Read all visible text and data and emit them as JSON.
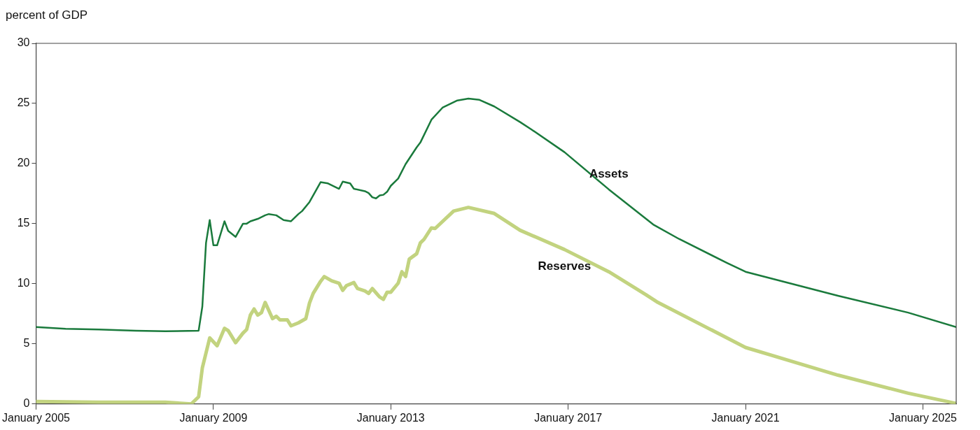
{
  "chart_data": {
    "type": "line",
    "ylabel": "percent of GDP",
    "xlim": [
      "2005-01",
      "2025-10"
    ],
    "xticks": [
      {
        "value": "2005-01",
        "label": "January 2005"
      },
      {
        "value": "2009-01",
        "label": "January 2009"
      },
      {
        "value": "2013-01",
        "label": "January 2013"
      },
      {
        "value": "2017-01",
        "label": "January 2017"
      },
      {
        "value": "2021-01",
        "label": "January 2021"
      },
      {
        "value": "2025-01",
        "label": "January 2025"
      }
    ],
    "ylim": [
      0,
      30
    ],
    "yticks": [
      0,
      5,
      10,
      15,
      20,
      25,
      30
    ],
    "legend": false,
    "marker": "none",
    "series": [
      {
        "name": "Assets",
        "color": "#1a7a3c",
        "x": [
          "2005-01",
          "2005-09",
          "2006-06",
          "2007-04",
          "2007-12",
          "2008-09",
          "2008-10",
          "2008-11",
          "2008-12",
          "2009-01",
          "2009-02",
          "2009-04",
          "2009-05",
          "2009-07",
          "2009-09",
          "2009-10",
          "2009-11",
          "2010-01",
          "2010-03",
          "2010-04",
          "2010-06",
          "2010-08",
          "2010-10",
          "2010-12",
          "2011-01",
          "2011-03",
          "2011-06",
          "2011-08",
          "2011-11",
          "2011-12",
          "2012-02",
          "2012-03",
          "2012-06",
          "2012-07",
          "2012-08",
          "2012-09",
          "2012-10",
          "2012-11",
          "2012-12",
          "2013-01",
          "2013-03",
          "2013-05",
          "2013-08",
          "2013-09",
          "2013-12",
          "2014-03",
          "2014-07",
          "2014-10",
          "2015-01",
          "2015-05",
          "2015-12",
          "2016-03",
          "2016-12",
          "2017-12",
          "2018-12",
          "2019-07",
          "2020-08",
          "2021-01",
          "2023-02",
          "2024-09",
          "2025-10"
        ],
        "values": [
          6.4,
          6.25,
          6.2,
          6.1,
          6.05,
          6.1,
          8.1,
          13.4,
          15.3,
          13.2,
          13.2,
          15.2,
          14.4,
          13.9,
          15.0,
          15.0,
          15.2,
          15.4,
          15.7,
          15.8,
          15.7,
          15.3,
          15.2,
          15.8,
          16.05,
          16.8,
          18.45,
          18.35,
          17.9,
          18.5,
          18.35,
          17.9,
          17.7,
          17.55,
          17.2,
          17.1,
          17.35,
          17.4,
          17.65,
          18.15,
          18.75,
          19.95,
          21.35,
          21.75,
          23.65,
          24.65,
          25.25,
          25.4,
          25.3,
          24.75,
          23.45,
          22.85,
          20.95,
          17.85,
          14.93,
          13.73,
          11.73,
          11.0,
          9.0,
          7.6,
          6.4
        ]
      },
      {
        "name": "Reserves",
        "color": "#c2d37f",
        "x": [
          "2005-01",
          "2006-06",
          "2007-12",
          "2008-07",
          "2008-09",
          "2008-10",
          "2008-12",
          "2009-02",
          "2009-04",
          "2009-05",
          "2009-07",
          "2009-09",
          "2009-10",
          "2009-11",
          "2009-12",
          "2010-01",
          "2010-02",
          "2010-03",
          "2010-05",
          "2010-06",
          "2010-07",
          "2010-09",
          "2010-10",
          "2010-12",
          "2011-02",
          "2011-03",
          "2011-04",
          "2011-06",
          "2011-07",
          "2011-09",
          "2011-11",
          "2011-12",
          "2012-01",
          "2012-03",
          "2012-04",
          "2012-06",
          "2012-07",
          "2012-08",
          "2012-10",
          "2012-11",
          "2012-12",
          "2013-01",
          "2013-03",
          "2013-04",
          "2013-05",
          "2013-06",
          "2013-08",
          "2013-09",
          "2013-10",
          "2013-12",
          "2014-01",
          "2014-06",
          "2014-10",
          "2015-05",
          "2015-12",
          "2016-12",
          "2017-12",
          "2018-10",
          "2019-01",
          "2021-01",
          "2023-02",
          "2024-09",
          "2025-10"
        ],
        "values": [
          0.2,
          0.15,
          0.15,
          0.0,
          0.6,
          3.0,
          5.5,
          4.85,
          6.3,
          6.1,
          5.1,
          5.9,
          6.2,
          7.4,
          7.9,
          7.4,
          7.6,
          8.45,
          7.1,
          7.3,
          7.0,
          7.0,
          6.5,
          6.75,
          7.1,
          8.4,
          9.2,
          10.2,
          10.6,
          10.25,
          10.05,
          9.45,
          9.85,
          10.1,
          9.6,
          9.4,
          9.2,
          9.6,
          8.9,
          8.7,
          9.3,
          9.3,
          10.05,
          11.0,
          10.6,
          12.05,
          12.5,
          13.4,
          13.7,
          14.65,
          14.6,
          16.05,
          16.35,
          15.85,
          14.45,
          12.85,
          11.0,
          9.1,
          8.5,
          4.7,
          2.4,
          0.9,
          0.05
        ]
      }
    ]
  }
}
